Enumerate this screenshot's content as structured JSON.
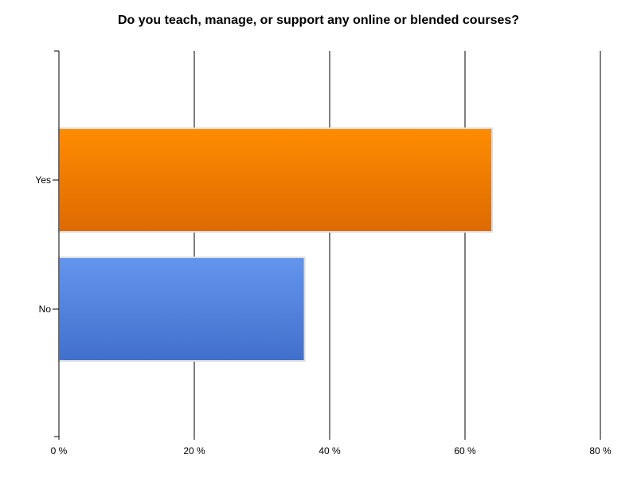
{
  "chart_data": {
    "type": "bar",
    "orientation": "horizontal",
    "title": "Do you teach, manage, or support any online or blended courses?",
    "categories": [
      "Yes",
      "No"
    ],
    "values": [
      64,
      36.3
    ],
    "xlim": [
      0,
      80
    ],
    "xticks": [
      0,
      20,
      40,
      60,
      80
    ],
    "xtick_labels": [
      "0 %",
      "20 %",
      "40 %",
      "60 %",
      "80 %"
    ],
    "xlabel": "",
    "ylabel": "",
    "grid": "vertical",
    "legend": "none",
    "colors": {
      "Yes": [
        "#ff8c00",
        "#dd6a00"
      ],
      "No": [
        "#6495ed",
        "#4170cc"
      ]
    }
  }
}
